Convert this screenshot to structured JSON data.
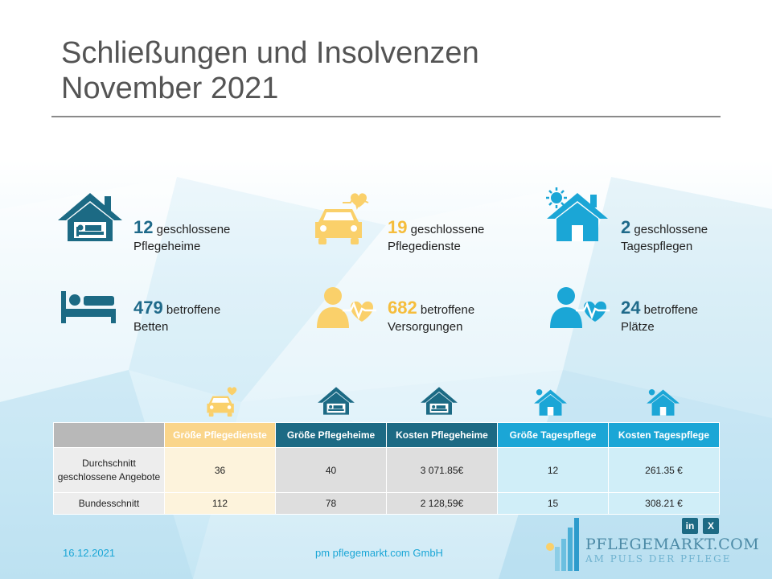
{
  "title": {
    "line1": "Schließungen und Insolvenzen",
    "line2": "November 2021"
  },
  "stats": [
    {
      "number": "12",
      "label1": "geschlossene",
      "label2": "Pflegeheime",
      "icon": "home-bed-icon",
      "color": "#1c6a84"
    },
    {
      "number": "19",
      "label1": "geschlossene",
      "label2": "Pflegedienste",
      "icon": "car-heart-icon",
      "color": "#fad06a"
    },
    {
      "number": "2",
      "label1": "geschlossene",
      "label2": "Tagespflegen",
      "icon": "house-sun-icon",
      "color": "#1ba6d6"
    },
    {
      "number": "479",
      "label1": "betroffene",
      "label2": "Betten",
      "icon": "bed-icon",
      "color": "#1c6a84"
    },
    {
      "number": "682",
      "label1": "betroffene",
      "label2": "Versorgungen",
      "icon": "person-heart-icon",
      "color": "#fad06a"
    },
    {
      "number": "24",
      "label1": "betroffene",
      "label2": "Plätze",
      "icon": "person-heart-icon",
      "color": "#1ba6d6"
    }
  ],
  "table": {
    "headers": [
      "",
      "Größe Pflegedienste",
      "Größe Pflegeheime",
      "Kosten Pflegeheime",
      "Größe Tagespflege",
      "Kosten Tagespflege"
    ],
    "rows": [
      {
        "label": "Durchschnitt geschlossene Angebote",
        "values": [
          "36",
          "40",
          "3 071.85€",
          "12",
          "261.35  €"
        ]
      },
      {
        "label": "Bundesschnitt",
        "values": [
          "112",
          "78",
          "2 128,59€",
          "15",
          "308.21  €"
        ]
      }
    ]
  },
  "footer": {
    "date": "16.12.2021",
    "company": "pm pflegemarkt.com GmbH",
    "logo_name": "PFLEGEMARKT.COM",
    "logo_tagline": "AM PULS DER PFLEGE",
    "social": [
      "linkedin-icon",
      "xing-icon"
    ]
  }
}
